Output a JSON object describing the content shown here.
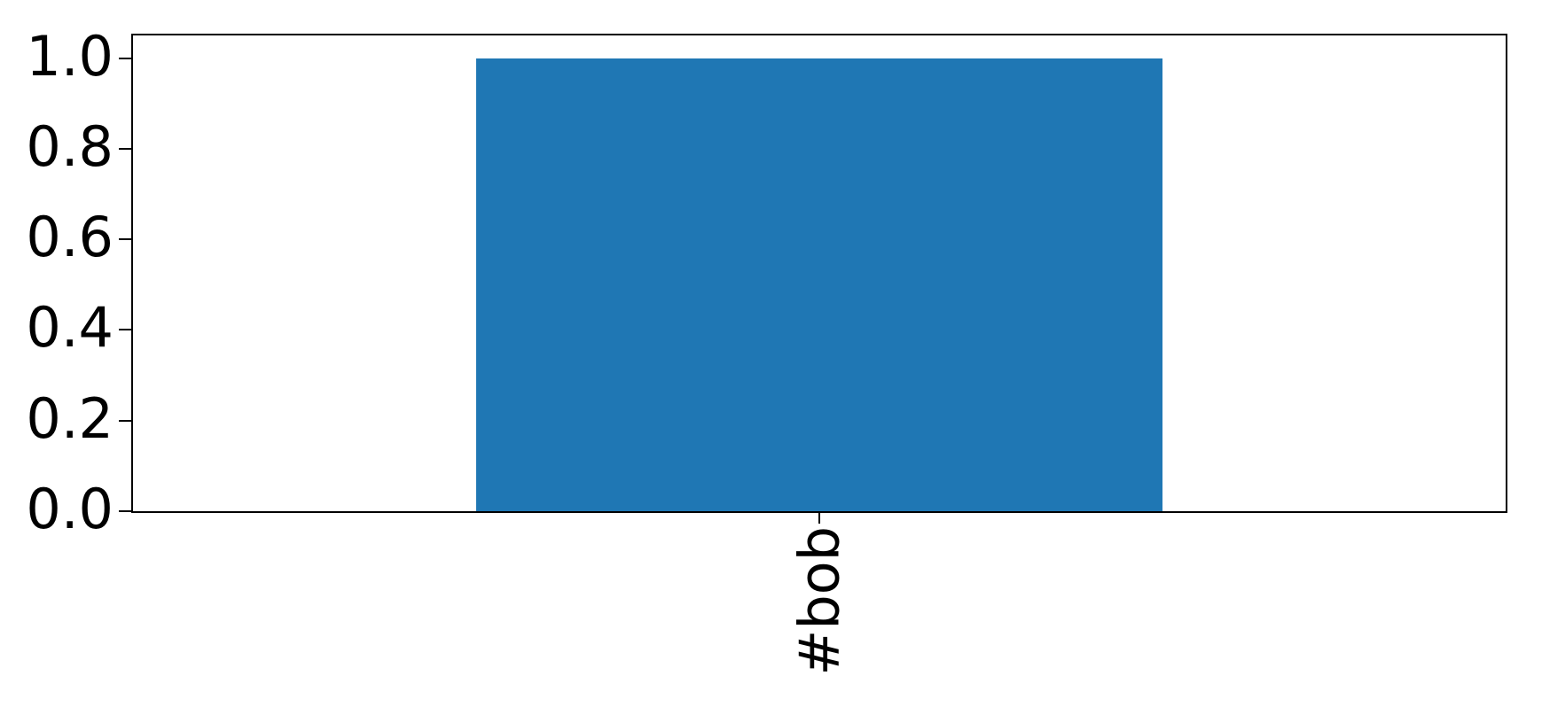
{
  "figure": {
    "background": "#ffffff"
  },
  "chart_data": {
    "type": "bar",
    "categories": [
      "#bob"
    ],
    "values": [
      1.0
    ],
    "series": [
      {
        "name": "",
        "values": [
          1.0
        ]
      }
    ],
    "title": "",
    "xlabel": "",
    "ylabel": "",
    "ylim": [
      0,
      1.05
    ],
    "yticks": [
      0.0,
      0.2,
      0.4,
      0.6,
      0.8,
      1.0
    ],
    "ytick_labels": [
      "0.0",
      "0.2",
      "0.4",
      "0.6",
      "0.8",
      "1.0"
    ],
    "xtick_labels": [
      "#bob"
    ],
    "xtick_rotation_deg": 90,
    "bar_color": "#1f77b4",
    "spine_color": "#000000",
    "grid": false,
    "legend": false
  }
}
